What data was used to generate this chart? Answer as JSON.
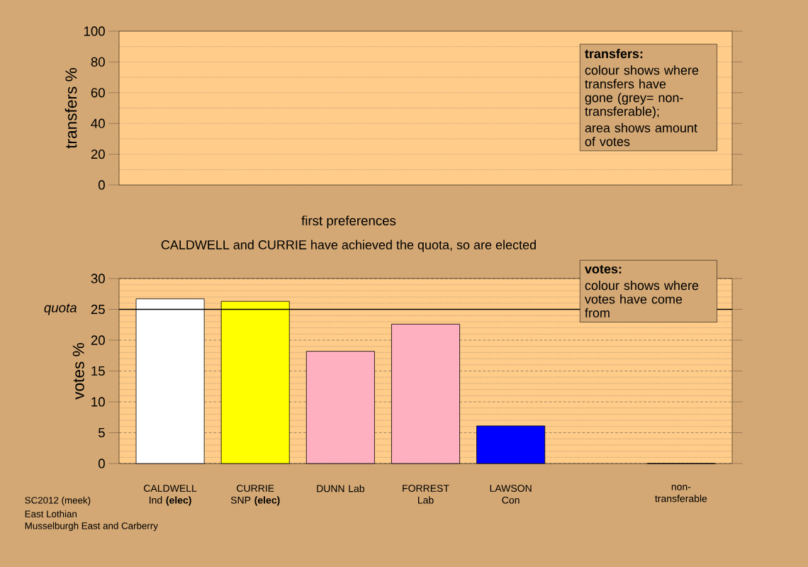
{
  "chart_data": [
    {
      "type": "bar",
      "ylabel": "transfers %",
      "categories": [
        null,
        null,
        null,
        null,
        null,
        null,
        null
      ],
      "values": [
        null,
        null,
        null,
        null,
        null,
        null,
        null
      ],
      "ylim": [
        0,
        100
      ],
      "yticks": [
        0,
        20,
        40,
        60,
        80,
        100
      ],
      "grid": "y",
      "tick_labels": "y",
      "annotations": [
        "transfers:",
        "colour shows where transfers have gone (grey= non-transferable);",
        "area shows amount of votes"
      ]
    },
    {
      "type": "bar",
      "title": "first preferences",
      "subtitle": "CALDWELL and CURRIE have achieved the quota, so are elected",
      "ylabel": "votes %",
      "categories": [
        "CALDWELL Ind **(elec)**",
        "CURRIE SNP **(elec)**",
        "DUNN Lab",
        "FORREST Lab",
        "LAWSON Con",
        null,
        "non-transferable"
      ],
      "values": [
        26.7,
        26.3,
        18.2,
        22.6,
        6.1,
        null,
        0
      ],
      "colors": [
        "#ffffff",
        "#ffff00",
        "#ffb0c0",
        "#ffb0c0",
        "#0000ff",
        "#aaaaaa",
        "#aaaaaa"
      ],
      "ylim": [
        0,
        30
      ],
      "yticks": [
        0,
        5,
        10,
        15,
        20,
        25,
        30
      ],
      "grid": "y",
      "ref_lines": [
        {
          "axis": "y",
          "value": 25,
          "label": "quota"
        }
      ],
      "annotations": [
        "votes:",
        "colour shows where votes have come from",
        "SC2012 (meek)",
        "East Lothian",
        "Musselburgh East and Carberry"
      ]
    }
  ]
}
